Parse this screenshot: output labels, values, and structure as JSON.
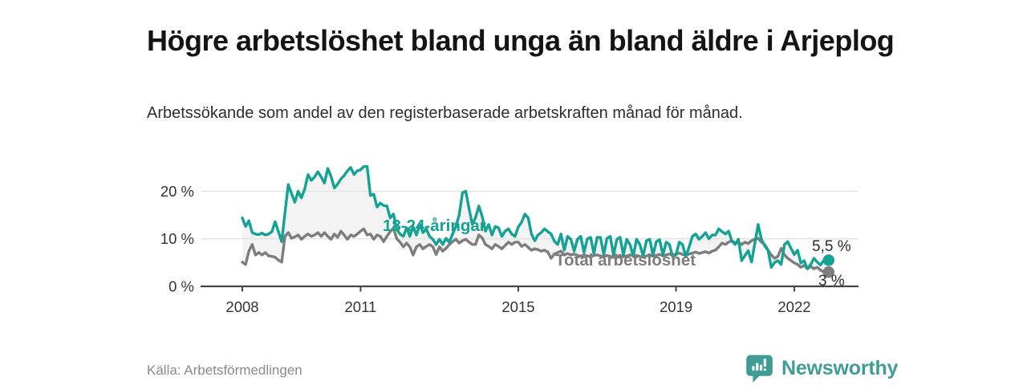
{
  "header": {
    "title": "Högre arbetslöshet bland unga än bland äldre i Arjeplog",
    "subtitle": "Arbetssökande som andel av den registerbaserade arbetskraften månad för månad."
  },
  "footer": {
    "source": "Källa: Arbetsförmedlingen",
    "brand": "Newsworthy",
    "brand_color": "#3f9d95",
    "logo_icon": "speech-bubble-bar-chart"
  },
  "chart_data": {
    "type": "line",
    "title": "Högre arbetslöshet bland unga än bland äldre i Arjeplog",
    "subtitle": "Arbetssökande som andel av den registerbaserade arbetskraften månad för månad.",
    "source": "Källa: Arbetsförmedlingen",
    "frequency": "monthly",
    "x_start_year": 2008,
    "x_end_year_approx": 2022.83,
    "ylim": [
      0,
      27
    ],
    "grid": "horizontal",
    "legend_position": "inline-labels",
    "colors": {
      "youth": "#14a295",
      "total": "#7d7d7d",
      "area_fill": "#f3f3f3",
      "axis": "#444444",
      "gridline": "#e3e3e3"
    },
    "x_ticks": [
      {
        "label": "2008",
        "year": 2008
      },
      {
        "label": "2011",
        "year": 2011
      },
      {
        "label": "2015",
        "year": 2015
      },
      {
        "label": "2019",
        "year": 2019
      },
      {
        "label": "2022",
        "year": 2022
      }
    ],
    "y_ticks": [
      {
        "label": "0 %",
        "value": 0
      },
      {
        "label": "10 %",
        "value": 10
      },
      {
        "label": "20 %",
        "value": 20
      }
    ],
    "series": [
      {
        "name": "18-24-åringar",
        "color": "#14a295",
        "end_label": "5,5 %",
        "end_value": 5.5,
        "values": [
          14.4,
          12.6,
          13.8,
          11.3,
          11.0,
          10.9,
          11.2,
          10.8,
          11.0,
          11.5,
          13.6,
          11.5,
          9.4,
          15.5,
          21.4,
          19.5,
          17.7,
          20.0,
          18.6,
          20.5,
          23.5,
          22.3,
          23.0,
          24.1,
          23.0,
          21.7,
          24.8,
          23.1,
          20.7,
          21.5,
          22.6,
          23.3,
          24.3,
          25.0,
          23.5,
          24.3,
          24.5,
          25.2,
          25.2,
          19.1,
          19.4,
          16.7,
          17.5,
          17.0,
          16.9,
          14.4,
          15.2,
          12.0,
          11.0,
          10.5,
          12.3,
          10.5,
          12.6,
          10.8,
          13.0,
          11.3,
          12.1,
          10.5,
          9.9,
          8.8,
          9.9,
          8.8,
          10.1,
          9.3,
          11.0,
          12.6,
          15.0,
          19.7,
          20.0,
          16.4,
          13.0,
          14.5,
          16.9,
          14.7,
          11.6,
          13.0,
          10.8,
          12.6,
          12.3,
          10.5,
          11.6,
          12.1,
          11.0,
          10.5,
          12.5,
          13.5,
          15.2,
          14.4,
          11.0,
          9.6,
          10.8,
          11.3,
          12.1,
          11.5,
          11.0,
          9.5,
          8.8,
          11.0,
          7.6,
          10.5,
          9.9,
          7.4,
          9.9,
          10.5,
          7.1,
          10.0,
          10.3,
          6.9,
          10.3,
          10.3,
          6.7,
          10.1,
          10.5,
          6.6,
          9.9,
          10.3,
          6.6,
          9.9,
          8.8,
          6.4,
          9.9,
          8.8,
          6.4,
          9.6,
          9.9,
          6.6,
          9.4,
          9.8,
          6.6,
          9.3,
          8.8,
          6.2,
          6.6,
          9.3,
          8.8,
          6.2,
          8.3,
          10.5,
          11.0,
          9.9,
          10.5,
          11.3,
          10.0,
          10.8,
          10.8,
          12.1,
          11.5,
          11.0,
          11.6,
          9.5,
          8.8,
          9.9,
          5.4,
          6.5,
          7.5,
          5.1,
          9.0,
          13.0,
          9.9,
          8.5,
          7.6,
          4.0,
          5.0,
          5.4,
          4.6,
          8.8,
          9.4,
          8.0,
          6.7,
          7.6,
          4.9,
          5.4,
          3.7,
          4.6,
          5.9,
          5.1,
          4.5,
          5.5
        ]
      },
      {
        "name": "Total arbetslöshet",
        "color": "#7d7d7d",
        "end_label": "3 %",
        "end_value": 3.0,
        "values": [
          5.1,
          4.6,
          7.4,
          8.8,
          6.6,
          7.1,
          6.6,
          7.1,
          6.4,
          6.3,
          6.1,
          5.5,
          5.1,
          10.5,
          11.3,
          10.1,
          10.4,
          10.8,
          9.9,
          10.5,
          11.0,
          10.5,
          10.8,
          11.3,
          10.5,
          11.3,
          10.5,
          9.9,
          11.0,
          10.3,
          11.6,
          10.8,
          9.9,
          10.8,
          10.5,
          11.0,
          11.6,
          12.1,
          10.8,
          11.0,
          9.9,
          10.8,
          10.5,
          9.4,
          10.5,
          11.5,
          12.2,
          10.0,
          9.3,
          8.3,
          9.1,
          8.3,
          6.6,
          8.3,
          8.8,
          7.9,
          8.4,
          8.8,
          8.3,
          6.7,
          8.3,
          7.4,
          8.0,
          8.8,
          9.4,
          9.9,
          9.1,
          9.6,
          9.9,
          9.3,
          8.8,
          8.8,
          10.8,
          10.2,
          8.8,
          8.4,
          7.9,
          8.8,
          8.4,
          7.9,
          8.6,
          9.3,
          8.8,
          9.3,
          9.3,
          8.4,
          8.8,
          8.2,
          7.6,
          7.9,
          7.7,
          7.4,
          7.6,
          7.2,
          5.9,
          6.8,
          7.1,
          7.4,
          6.6,
          6.9,
          6.6,
          6.8,
          6.5,
          6.3,
          6.6,
          6.4,
          6.2,
          6.5,
          6.6,
          6.4,
          6.2,
          6.5,
          6.3,
          6.1,
          6.3,
          6.5,
          6.2,
          6.4,
          6.6,
          6.4,
          6.5,
          6.3,
          6.1,
          6.4,
          6.6,
          6.3,
          6.5,
          6.7,
          6.4,
          6.6,
          6.8,
          6.6,
          6.8,
          7.0,
          6.7,
          6.5,
          6.8,
          7.0,
          7.2,
          6.9,
          7.1,
          7.3,
          7.0,
          7.4,
          7.6,
          8.3,
          9.1,
          8.8,
          9.3,
          9.6,
          9.1,
          9.3,
          8.8,
          9.3,
          9.0,
          9.6,
          9.9,
          10.1,
          9.3,
          8.8,
          7.6,
          6.6,
          5.9,
          6.3,
          8.0,
          6.6,
          5.9,
          5.4,
          4.9,
          4.6,
          4.0,
          4.4,
          3.7,
          4.2,
          3.7,
          4.0,
          3.4,
          3.0
        ]
      }
    ]
  }
}
